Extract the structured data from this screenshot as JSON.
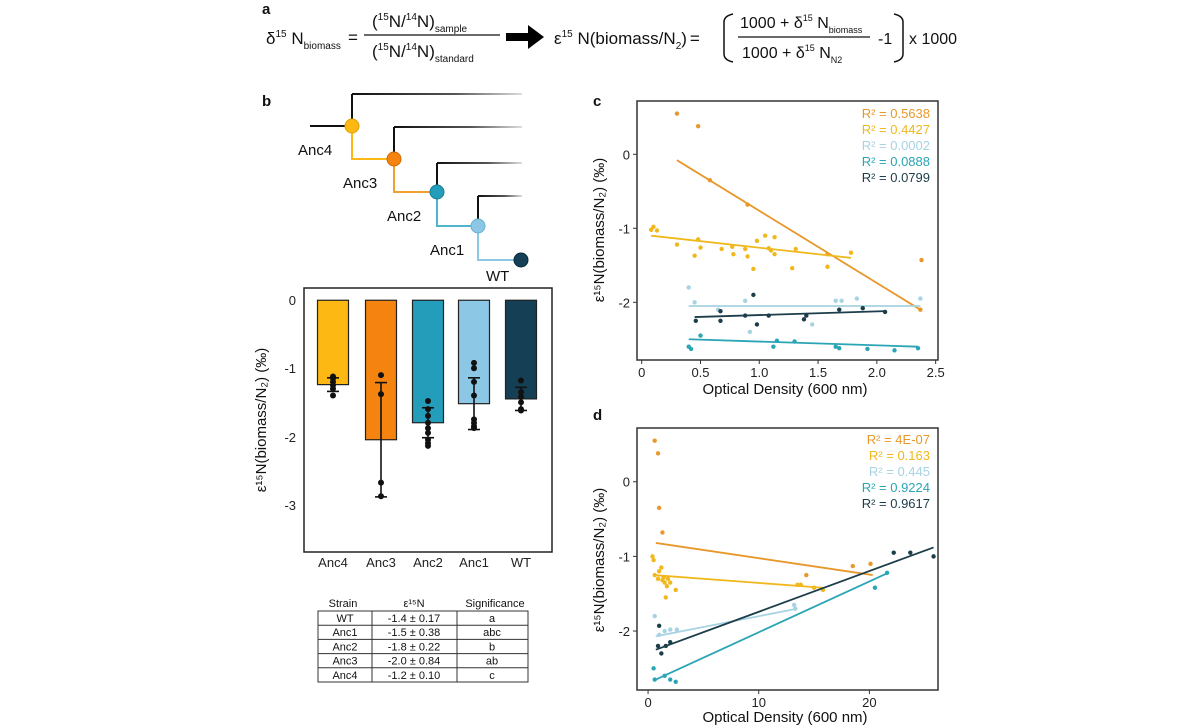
{
  "panel_labels": {
    "a": "a",
    "b": "b",
    "c": "c",
    "d": "d"
  },
  "formula": {
    "lhs": {
      "delta": "δ",
      "sup": "15",
      "n": " N",
      "sub": "biomass",
      "eq": "="
    },
    "num": {
      "open": "(",
      "sup1": "15",
      "mid": "N/",
      "sup2": "14",
      "close": "N)",
      "sub": "sample"
    },
    "den": {
      "open": "(",
      "sup1": "15",
      "mid": "N/",
      "sup2": "14",
      "close": "N)",
      "sub": "standard"
    },
    "arrow_icon": "right-arrow-icon",
    "rhs": {
      "eps": "ε",
      "sup": "15",
      "text": " N(biomass/N",
      "sub": "2",
      "close": ")",
      "eq": "=",
      "num_text": "1000 + δ",
      "num_sup": "15",
      "num_n": " N",
      "num_sub": "biomass",
      "den_text": "1000 + δ",
      "den_sup": "15",
      "den_n": " N",
      "den_sub": "N2",
      "minus": "-1",
      "times": "x 1000"
    }
  },
  "tree": {
    "nodes": [
      "Anc4",
      "Anc3",
      "Anc2",
      "Anc1",
      "WT"
    ]
  },
  "colors": {
    "Anc4": "#FDB813",
    "Anc3": "#F5830F",
    "Anc2": "#239DBA",
    "Anc1": "#8CC8E6",
    "WT": "#153F55"
  },
  "table": {
    "headers": [
      "Strain",
      "ε¹⁵N",
      "Significance"
    ],
    "rows": [
      [
        "WT",
        "-1.4 ± 0.17",
        "a"
      ],
      [
        "Anc1",
        "-1.5 ± 0.38",
        "abc"
      ],
      [
        "Anc2",
        "-1.8 ± 0.22",
        "b"
      ],
      [
        "Anc3",
        "-2.0 ± 0.84",
        "ab"
      ],
      [
        "Anc4",
        "-1.2 ± 0.10",
        "c"
      ]
    ]
  },
  "chart_data": [
    {
      "panel": "b",
      "type": "bar",
      "ylabel": "ε¹⁵N(biomass/N₂) (‰)",
      "ylim": [
        -3.7,
        0.18
      ],
      "yticks": [
        "0",
        "-1",
        "-2",
        "-3"
      ],
      "categories": [
        "Anc4",
        "Anc3",
        "Anc2",
        "Anc1",
        "WT"
      ],
      "values": [
        -1.24,
        -2.05,
        -1.8,
        -1.52,
        -1.45
      ],
      "errors": [
        0.1,
        0.84,
        0.22,
        0.38,
        0.17
      ],
      "points": [
        [
          -1.12,
          -1.15,
          -1.2,
          -1.25,
          -1.3,
          -1.4
        ],
        [
          -1.1,
          -1.38,
          -2.68,
          -2.88
        ],
        [
          -1.48,
          -1.6,
          -1.7,
          -1.8,
          -1.88,
          -1.95,
          -2.05,
          -2.1,
          -2.14
        ],
        [
          -0.92,
          -1.0,
          -1.2,
          -1.4,
          -1.75,
          -1.8,
          -1.85,
          -1.88
        ],
        [
          -1.18,
          -1.35,
          -1.42,
          -1.5,
          -1.6,
          -1.62
        ]
      ]
    },
    {
      "panel": "c",
      "type": "scatter",
      "xlabel": "Optical Density (600 nm)",
      "ylabel": "ε¹⁵N(biomass/N₂) (‰)",
      "xlim": [
        -0.04,
        2.52
      ],
      "ylim": [
        -2.78,
        0.72
      ],
      "xticks": [
        "0",
        "0.5",
        "1.0",
        "1.5",
        "2.0",
        "2.5"
      ],
      "yticks": [
        "0",
        "-1",
        "-2"
      ],
      "series": [
        {
          "strain": "Anc3",
          "color": "#E8982A",
          "r2": "R² = 0.5638",
          "fit": [
            [
              0.3,
              -0.08
            ],
            [
              2.37,
              -2.1
            ]
          ],
          "points": [
            [
              0.3,
              0.55
            ],
            [
              0.48,
              0.38
            ],
            [
              0.58,
              -0.35
            ],
            [
              0.9,
              -0.68
            ],
            [
              1.58,
              -1.35
            ],
            [
              2.37,
              -2.1
            ],
            [
              2.38,
              -1.43
            ]
          ]
        },
        {
          "strain": "Anc4",
          "color": "#F0B81C",
          "r2": "R² = 0.4427",
          "fit": [
            [
              0.08,
              -1.1
            ],
            [
              1.78,
              -1.4
            ]
          ],
          "points": [
            [
              0.08,
              -1.02
            ],
            [
              0.1,
              -0.98
            ],
            [
              0.13,
              -1.03
            ],
            [
              0.3,
              -1.22
            ],
            [
              0.45,
              -1.37
            ],
            [
              0.48,
              -1.15
            ],
            [
              0.5,
              -1.26
            ],
            [
              0.68,
              -1.28
            ],
            [
              0.77,
              -1.25
            ],
            [
              0.78,
              -1.35
            ],
            [
              0.88,
              -1.28
            ],
            [
              0.9,
              -1.38
            ],
            [
              0.95,
              -1.55
            ],
            [
              0.98,
              -1.17
            ],
            [
              1.05,
              -1.1
            ],
            [
              1.08,
              -1.27
            ],
            [
              1.1,
              -1.3
            ],
            [
              1.13,
              -1.12
            ],
            [
              1.13,
              -1.35
            ],
            [
              1.28,
              -1.54
            ],
            [
              1.31,
              -1.28
            ],
            [
              1.58,
              -1.52
            ],
            [
              1.78,
              -1.33
            ]
          ]
        },
        {
          "strain": "Anc1",
          "color": "#A7D3E3",
          "r2": "R² = 0.0002",
          "fit": [
            [
              0.4,
              -2.05
            ],
            [
              2.37,
              -2.05
            ]
          ],
          "points": [
            [
              0.4,
              -1.8
            ],
            [
              0.45,
              -2.0
            ],
            [
              0.65,
              -2.1
            ],
            [
              0.88,
              -1.98
            ],
            [
              0.92,
              -2.4
            ],
            [
              1.45,
              -2.3
            ],
            [
              1.65,
              -1.98
            ],
            [
              1.7,
              -1.98
            ],
            [
              1.83,
              -1.95
            ],
            [
              2.37,
              -1.95
            ]
          ]
        },
        {
          "strain": "Anc2",
          "color": "#2AA5B5",
          "r2": "R² = 0.0888",
          "fit": [
            [
              0.4,
              -2.5
            ],
            [
              2.35,
              -2.6
            ]
          ],
          "points": [
            [
              0.4,
              -2.6
            ],
            [
              0.42,
              -2.63
            ],
            [
              0.5,
              -2.45
            ],
            [
              1.12,
              -2.6
            ],
            [
              1.15,
              -2.52
            ],
            [
              1.3,
              -2.53
            ],
            [
              1.65,
              -2.6
            ],
            [
              1.68,
              -2.62
            ],
            [
              1.92,
              -2.63
            ],
            [
              2.15,
              -2.65
            ],
            [
              2.35,
              -2.62
            ]
          ]
        },
        {
          "strain": "WT",
          "color": "#1C3D4A",
          "r2": "R² = 0.0799",
          "fit": [
            [
              0.45,
              -2.2
            ],
            [
              2.07,
              -2.12
            ]
          ],
          "points": [
            [
              0.46,
              -2.25
            ],
            [
              0.67,
              -2.12
            ],
            [
              0.67,
              -2.25
            ],
            [
              0.88,
              -2.18
            ],
            [
              0.95,
              -1.9
            ],
            [
              0.98,
              -2.3
            ],
            [
              1.08,
              -2.18
            ],
            [
              1.38,
              -2.23
            ],
            [
              1.4,
              -2.18
            ],
            [
              1.68,
              -2.1
            ],
            [
              1.88,
              -2.08
            ],
            [
              2.07,
              -2.13
            ]
          ]
        }
      ]
    },
    {
      "panel": "d",
      "type": "scatter",
      "xlabel": "Optical Density (600 nm)",
      "ylabel": "ε¹⁵N(biomass/N₂) (‰)",
      "xlim": [
        -1.0,
        26.2
      ],
      "ylim": [
        -2.79,
        0.72
      ],
      "xticks": [
        "0",
        "10",
        "20"
      ],
      "yticks": [
        "0",
        "-1",
        "-2"
      ],
      "series": [
        {
          "strain": "Anc3",
          "color": "#E8982A",
          "r2": "R² = 4E-07",
          "fit": [
            [
              0.7,
              -0.82
            ],
            [
              20.3,
              -1.25
            ]
          ],
          "points": [
            [
              0.6,
              0.55
            ],
            [
              0.9,
              0.38
            ],
            [
              1.0,
              -0.35
            ],
            [
              1.3,
              -0.68
            ],
            [
              14.3,
              -1.25
            ],
            [
              18.5,
              -1.13
            ],
            [
              20.1,
              -1.1
            ]
          ]
        },
        {
          "strain": "Anc4",
          "color": "#F0B81C",
          "r2": "R² = 0.163",
          "fit": [
            [
              0.5,
              -1.25
            ],
            [
              15.8,
              -1.42
            ]
          ],
          "points": [
            [
              0.4,
              -1.0
            ],
            [
              0.5,
              -1.05
            ],
            [
              0.6,
              -1.25
            ],
            [
              0.9,
              -1.3
            ],
            [
              1.0,
              -1.2
            ],
            [
              1.2,
              -1.15
            ],
            [
              1.3,
              -1.32
            ],
            [
              1.4,
              -1.28
            ],
            [
              1.5,
              -1.35
            ],
            [
              1.6,
              -1.55
            ],
            [
              1.7,
              -1.4
            ],
            [
              1.8,
              -1.3
            ],
            [
              2.0,
              -1.35
            ],
            [
              2.5,
              -1.45
            ],
            [
              13.5,
              -1.38
            ],
            [
              13.8,
              -1.38
            ],
            [
              15.0,
              -1.42
            ],
            [
              15.8,
              -1.45
            ]
          ]
        },
        {
          "strain": "Anc1",
          "color": "#A7D3E3",
          "r2": "R² = 0.445",
          "fit": [
            [
              0.7,
              -2.07
            ],
            [
              13.5,
              -1.7
            ]
          ],
          "points": [
            [
              0.6,
              -1.8
            ],
            [
              1.0,
              -2.05
            ],
            [
              1.5,
              -2.0
            ],
            [
              2.0,
              -1.98
            ],
            [
              2.6,
              -1.98
            ],
            [
              13.2,
              -1.65
            ],
            [
              13.3,
              -1.7
            ]
          ]
        },
        {
          "strain": "Anc2",
          "color": "#2AA5B5",
          "r2": "R² = 0.9224",
          "fit": [
            [
              0.7,
              -2.65
            ],
            [
              21.7,
              -1.22
            ]
          ],
          "points": [
            [
              0.5,
              -2.5
            ],
            [
              0.6,
              -2.65
            ],
            [
              1.5,
              -2.6
            ],
            [
              2.0,
              -2.65
            ],
            [
              2.5,
              -2.68
            ],
            [
              20.5,
              -1.42
            ],
            [
              21.6,
              -1.22
            ]
          ]
        },
        {
          "strain": "WT",
          "color": "#1C3D4A",
          "r2": "R² = 0.9617",
          "fit": [
            [
              0.7,
              -2.25
            ],
            [
              25.8,
              -0.88
            ]
          ],
          "points": [
            [
              1.0,
              -1.93
            ],
            [
              0.9,
              -2.2
            ],
            [
              1.2,
              -2.3
            ],
            [
              1.6,
              -2.2
            ],
            [
              2.0,
              -2.15
            ],
            [
              22.2,
              -0.95
            ],
            [
              23.7,
              -0.95
            ],
            [
              25.8,
              -1.0
            ]
          ]
        }
      ]
    }
  ]
}
